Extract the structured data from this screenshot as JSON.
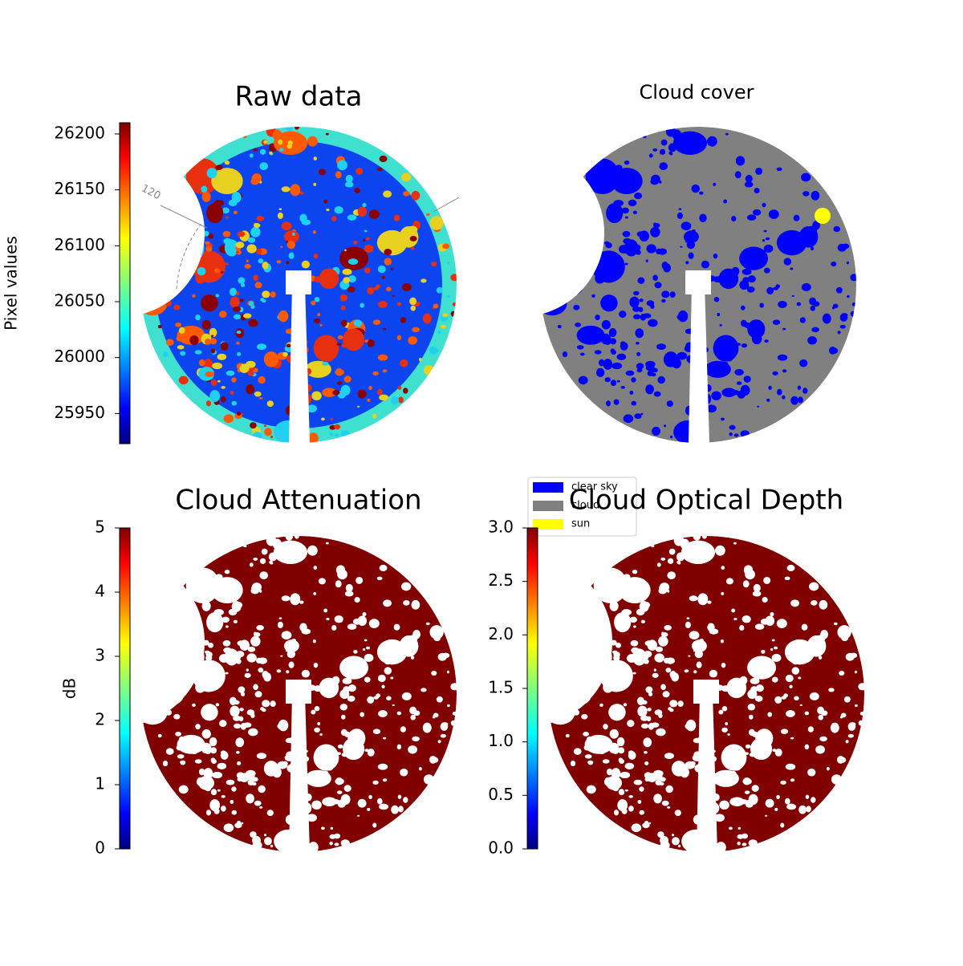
{
  "chart_data": [
    {
      "type": "image",
      "title": "Raw data",
      "ylabel": "Pixel values",
      "ylim": [
        25923,
        26210
      ],
      "yticks": [
        25950,
        26000,
        26050,
        26100,
        26150,
        26200
      ],
      "annotations": [
        "120"
      ]
    },
    {
      "type": "image",
      "title": "Cloud cover",
      "legend_entries": [
        {
          "name": "clear sky",
          "color": "#0000ff"
        },
        {
          "name": "cloud",
          "color": "#808080"
        },
        {
          "name": "sun",
          "color": "#ffff00"
        }
      ]
    },
    {
      "type": "image",
      "title": "Cloud Attenuation",
      "ylabel": "dB",
      "ylim": [
        0,
        5
      ],
      "yticks": [
        0,
        1,
        2,
        3,
        4,
        5
      ]
    },
    {
      "type": "image",
      "title": "Cloud Optical Depth",
      "ylim": [
        0,
        3
      ],
      "yticks": [
        {
          "value": 0,
          "label": "0.0"
        },
        0.5,
        {
          "value": 1,
          "label": "1.0"
        },
        1.5,
        {
          "value": 2,
          "label": "2.0"
        },
        2.5,
        {
          "value": 3,
          "label": "3.0"
        }
      ]
    }
  ]
}
